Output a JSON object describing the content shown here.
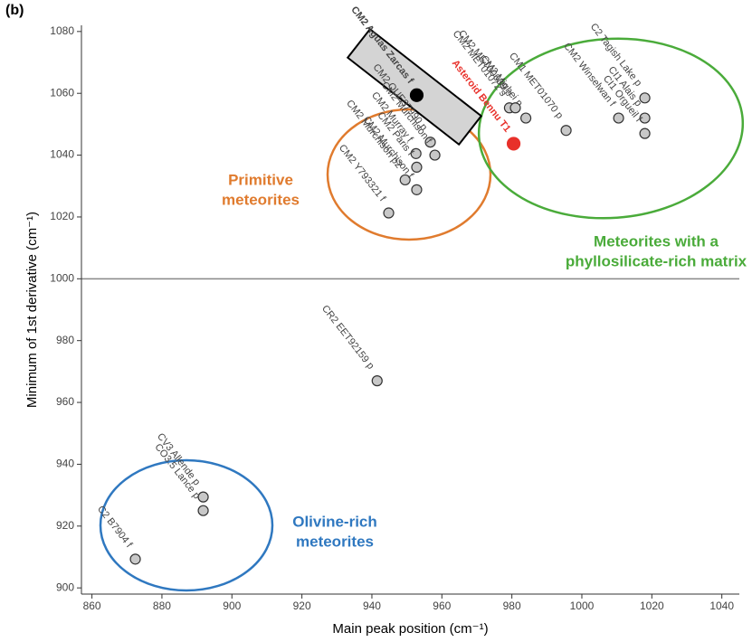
{
  "panel_label": "(b)",
  "chart_data": {
    "type": "scatter",
    "xlabel": "Main peak position (cm⁻¹)",
    "ylabel": "Minimum of 1st derivative (cm⁻¹)",
    "xlim": [
      857,
      1045
    ],
    "ylim": [
      898,
      1082
    ],
    "xticks": [
      860,
      880,
      900,
      920,
      940,
      960,
      980,
      1000,
      1020,
      1040
    ],
    "yticks": [
      900,
      920,
      940,
      960,
      980,
      1000,
      1020,
      1040,
      1060,
      1080
    ],
    "grid": true,
    "reference_line": 1000,
    "points": [
      {
        "name": "CM2 Aguas Zarcas f",
        "x": 952.8,
        "y": 1059.4,
        "color": "#000000"
      },
      {
        "name": "Asteroid Bennu T1",
        "x": 980.5,
        "y": 1043.7,
        "color": "#e8302a"
      },
      {
        "name": "CM2 MET01072 s",
        "x": 979.3,
        "y": 1055.3,
        "color": "#c8c8c8"
      },
      {
        "name": "CM2 Mighei p",
        "x": 984,
        "y": 1052,
        "color": "#c8c8c8"
      },
      {
        "name": "CM2 MET00639 p",
        "x": 981,
        "y": 1055.3,
        "color": "#c8c8c8"
      },
      {
        "name": "CM2 Winselwan f",
        "x": 1010.5,
        "y": 1052,
        "color": "#c8c8c8"
      },
      {
        "name": "C2 Tagish Lake p",
        "x": 1018,
        "y": 1058.5,
        "color": "#c8c8c8"
      },
      {
        "name": "CI1 Alais p",
        "x": 1018,
        "y": 1052,
        "color": "#c8c8c8"
      },
      {
        "name": "CI1 Orgueil f",
        "x": 1018,
        "y": 1047,
        "color": "#c8c8c8"
      },
      {
        "name": "CM1 MET01070 p",
        "x": 995.5,
        "y": 1048,
        "color": "#c8c8c8"
      },
      {
        "name": "CM2 Murray f",
        "x": 952.6,
        "y": 1040.5,
        "color": "#c8c8c8"
      },
      {
        "name": "CM2 QUE97990 p",
        "x": 956.7,
        "y": 1044.2,
        "color": "#c8c8c8"
      },
      {
        "name": "CM2 Murchison f",
        "x": 958,
        "y": 1040,
        "color": "#c8c8c8"
      },
      {
        "name": "CM2 Murchison p2",
        "x": 949.5,
        "y": 1032,
        "color": "#c8c8c8"
      },
      {
        "name": "CM2 Paris f",
        "x": 952.8,
        "y": 1036.1,
        "color": "#c8c8c8"
      },
      {
        "name": "CM2 Murchison f",
        "x": 952.8,
        "y": 1028.8,
        "color": "#c8c8c8"
      },
      {
        "name": "CM2 Y793321 f",
        "x": 944.8,
        "y": 1021.3,
        "color": "#c8c8c8"
      },
      {
        "name": "CR2 EET92159 p",
        "x": 941.5,
        "y": 967,
        "color": "#c8c8c8"
      },
      {
        "name": "CV3 Allende p",
        "x": 891.8,
        "y": 929.4,
        "color": "#c8c8c8"
      },
      {
        "name": "CO3.5 Lance p",
        "x": 891.8,
        "y": 925,
        "color": "#c8c8c8"
      },
      {
        "name": "C2 B7904 f",
        "x": 872.4,
        "y": 909.3,
        "color": "#c8c8c8"
      }
    ],
    "annotations": [
      {
        "lines": [
          "Primitive",
          "meteorites"
        ],
        "color": "#e07b2e"
      },
      {
        "lines": [
          "Meteorites with a",
          "phyllosilicate-rich matrix"
        ],
        "color": "#4aab3a"
      },
      {
        "lines": [
          "Olivine-rich",
          "meteorites"
        ],
        "color": "#2f78c0"
      }
    ]
  }
}
